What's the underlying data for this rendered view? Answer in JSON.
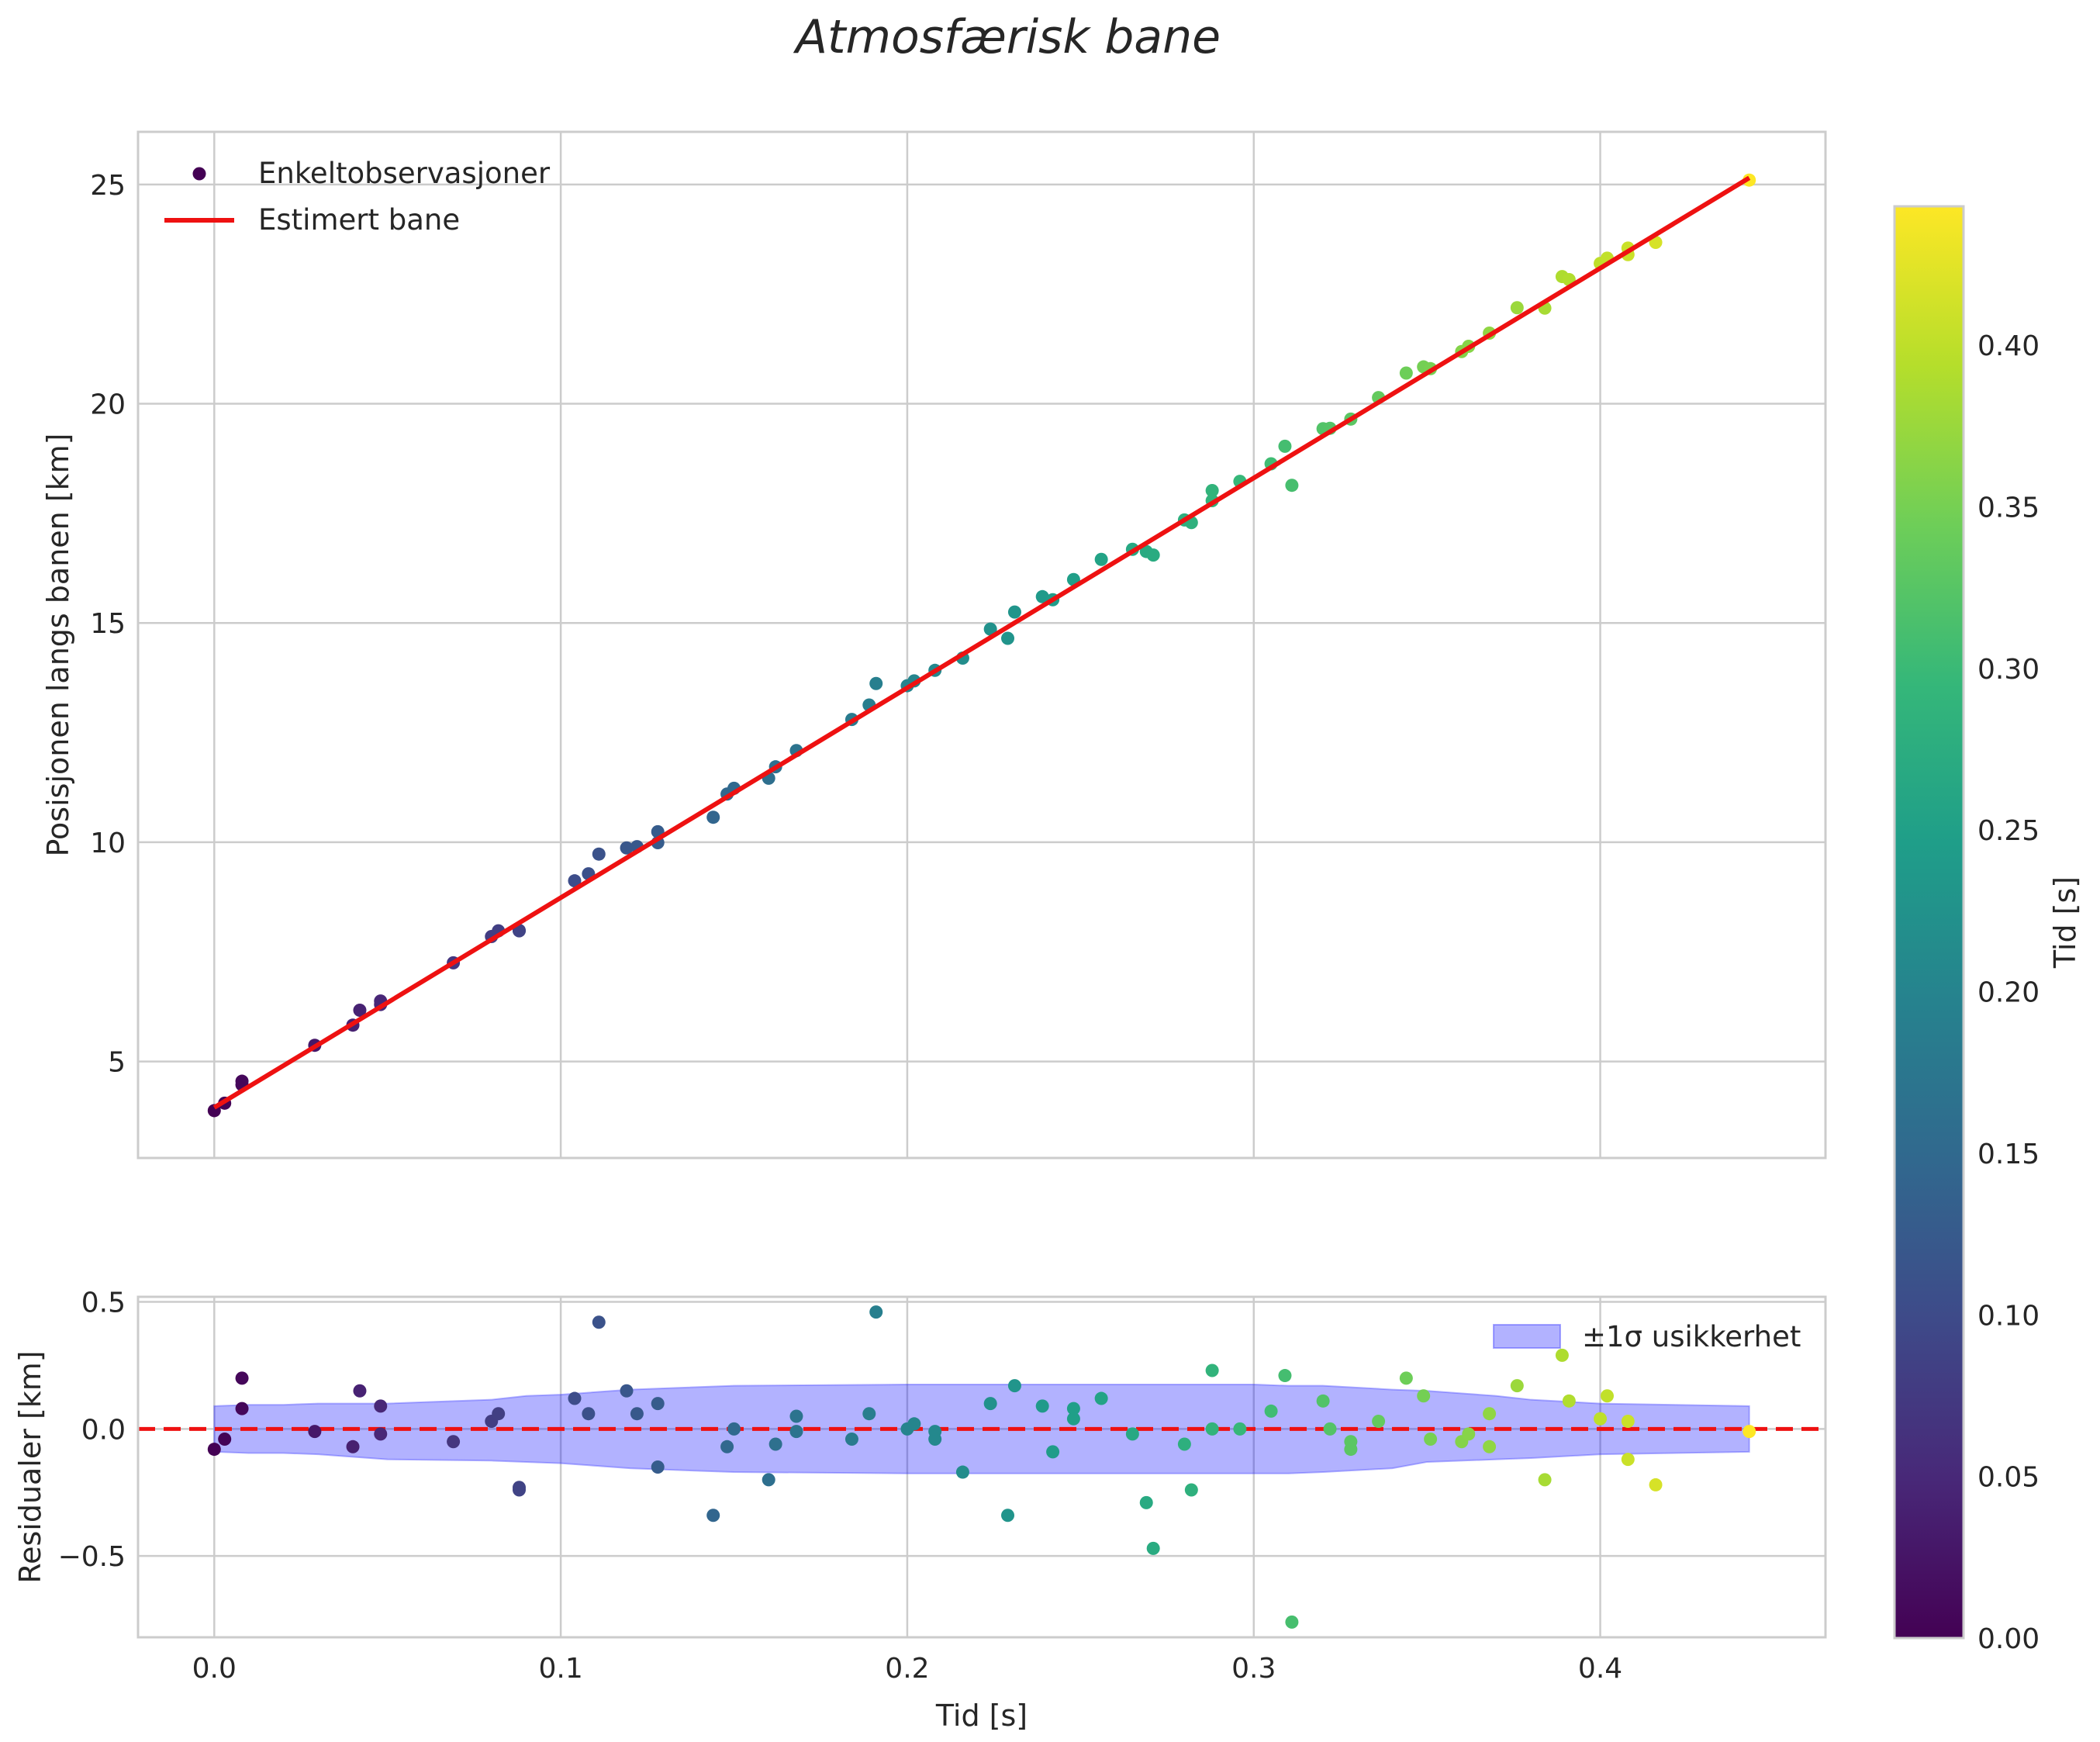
{
  "chart_data": [
    {
      "panel": "top",
      "type": "scatter",
      "title": "Atmosfærisk bane",
      "xlabel": "",
      "ylabel": "Posisjonen langs banen [km]",
      "xlim": [
        -0.022,
        0.465
      ],
      "ylim": [
        2.8,
        26.2
      ],
      "xticks": [
        0.0,
        0.1,
        0.2,
        0.3,
        0.4
      ],
      "yticks": [
        5,
        10,
        15,
        20,
        25
      ],
      "ytick_labels": [
        "5",
        "10",
        "15",
        "20",
        "25"
      ],
      "grid": true,
      "legend_position": "top-left",
      "legend": [
        "Enkeltobservasjoner",
        "Estimert bane"
      ],
      "fit_line": {
        "name": "Estimert bane",
        "color": "#ee1111",
        "x": [
          0.0,
          0.443
        ],
        "y": [
          3.95,
          25.15
        ]
      },
      "scatter_name": "Enkeltobservasjoner",
      "points": [
        [
          0.0,
          3.88
        ],
        [
          0.003,
          4.05
        ],
        [
          0.008,
          4.55
        ],
        [
          0.008,
          4.47
        ],
        [
          0.029,
          5.37
        ],
        [
          0.04,
          5.83
        ],
        [
          0.042,
          6.17
        ],
        [
          0.048,
          6.38
        ],
        [
          0.048,
          6.3
        ],
        [
          0.069,
          7.25
        ],
        [
          0.08,
          7.85
        ],
        [
          0.082,
          7.98
        ],
        [
          0.088,
          7.98
        ],
        [
          0.088,
          7.99
        ],
        [
          0.104,
          9.12
        ],
        [
          0.108,
          9.28
        ],
        [
          0.111,
          9.73
        ],
        [
          0.119,
          9.87
        ],
        [
          0.122,
          9.9
        ],
        [
          0.128,
          10.24
        ],
        [
          0.128,
          9.99
        ],
        [
          0.144,
          10.57
        ],
        [
          0.148,
          11.1
        ],
        [
          0.15,
          11.23
        ],
        [
          0.16,
          11.46
        ],
        [
          0.162,
          11.72
        ],
        [
          0.168,
          12.09
        ],
        [
          0.184,
          12.8
        ],
        [
          0.189,
          13.13
        ],
        [
          0.191,
          13.62
        ],
        [
          0.2,
          13.57
        ],
        [
          0.202,
          13.68
        ],
        [
          0.208,
          13.92
        ],
        [
          0.216,
          14.2
        ],
        [
          0.224,
          14.86
        ],
        [
          0.229,
          14.65
        ],
        [
          0.231,
          15.25
        ],
        [
          0.239,
          15.6
        ],
        [
          0.242,
          15.53
        ],
        [
          0.248,
          15.99
        ],
        [
          0.256,
          16.45
        ],
        [
          0.265,
          16.68
        ],
        [
          0.269,
          16.63
        ],
        [
          0.271,
          16.55
        ],
        [
          0.28,
          17.35
        ],
        [
          0.282,
          17.29
        ],
        [
          0.288,
          18.02
        ],
        [
          0.288,
          17.79
        ],
        [
          0.296,
          18.23
        ],
        [
          0.305,
          18.63
        ],
        [
          0.309,
          19.03
        ],
        [
          0.311,
          18.14
        ],
        [
          0.32,
          19.43
        ],
        [
          0.322,
          19.44
        ],
        [
          0.328,
          19.65
        ],
        [
          0.336,
          20.14
        ],
        [
          0.344,
          20.7
        ],
        [
          0.349,
          20.84
        ],
        [
          0.351,
          20.8
        ],
        [
          0.36,
          21.19
        ],
        [
          0.362,
          21.31
        ],
        [
          0.368,
          21.61
        ],
        [
          0.376,
          22.19
        ],
        [
          0.384,
          22.18
        ],
        [
          0.389,
          22.9
        ],
        [
          0.391,
          22.83
        ],
        [
          0.4,
          23.2
        ],
        [
          0.402,
          23.32
        ],
        [
          0.408,
          23.55
        ],
        [
          0.408,
          23.4
        ],
        [
          0.416,
          23.68
        ],
        [
          0.443,
          25.1
        ]
      ]
    },
    {
      "panel": "bottom",
      "type": "scatter",
      "title": "",
      "xlabel": "Tid [s]",
      "ylabel": "Residualer [km]",
      "xlim": [
        -0.022,
        0.465
      ],
      "ylim": [
        -0.82,
        0.52
      ],
      "xticks": [
        0.0,
        0.1,
        0.2,
        0.3,
        0.4
      ],
      "xtick_labels": [
        "0.0",
        "0.1",
        "0.2",
        "0.3",
        "0.4"
      ],
      "yticks": [
        -0.5,
        0.0,
        0.5
      ],
      "ytick_labels": [
        "−0.5",
        "0.0",
        "0.5"
      ],
      "grid": true,
      "legend_position": "top-right",
      "legend": [
        "±1σ usikkerhet"
      ],
      "zero_line": {
        "y": 0.0,
        "color": "#ee1111",
        "style": "dashed"
      },
      "band": {
        "name": "±1σ usikkerhet",
        "x": [
          0.0,
          0.01,
          0.02,
          0.03,
          0.05,
          0.08,
          0.09,
          0.1,
          0.12,
          0.15,
          0.2,
          0.25,
          0.3,
          0.31,
          0.32,
          0.34,
          0.35,
          0.37,
          0.38,
          0.4,
          0.443
        ],
        "upper": [
          0.09,
          0.095,
          0.095,
          0.1,
          0.1,
          0.115,
          0.13,
          0.135,
          0.155,
          0.17,
          0.175,
          0.175,
          0.175,
          0.17,
          0.17,
          0.155,
          0.15,
          0.13,
          0.115,
          0.1,
          0.09
        ],
        "lower": [
          -0.09,
          -0.095,
          -0.095,
          -0.1,
          -0.12,
          -0.125,
          -0.13,
          -0.135,
          -0.155,
          -0.17,
          -0.175,
          -0.175,
          -0.175,
          -0.175,
          -0.17,
          -0.155,
          -0.13,
          -0.12,
          -0.115,
          -0.1,
          -0.09
        ]
      },
      "points": [
        [
          0.0,
          -0.08
        ],
        [
          0.003,
          -0.04
        ],
        [
          0.008,
          0.2
        ],
        [
          0.008,
          0.08
        ],
        [
          0.029,
          -0.01
        ],
        [
          0.04,
          -0.07
        ],
        [
          0.042,
          0.15
        ],
        [
          0.048,
          0.09
        ],
        [
          0.048,
          -0.02
        ],
        [
          0.069,
          -0.05
        ],
        [
          0.08,
          0.03
        ],
        [
          0.082,
          0.06
        ],
        [
          0.088,
          -0.23
        ],
        [
          0.088,
          -0.24
        ],
        [
          0.104,
          0.12
        ],
        [
          0.108,
          0.06
        ],
        [
          0.111,
          0.42
        ],
        [
          0.119,
          0.15
        ],
        [
          0.122,
          0.06
        ],
        [
          0.128,
          0.1
        ],
        [
          0.128,
          -0.15
        ],
        [
          0.144,
          -0.34
        ],
        [
          0.148,
          -0.07
        ],
        [
          0.15,
          0.0
        ],
        [
          0.16,
          -0.2
        ],
        [
          0.162,
          -0.06
        ],
        [
          0.168,
          0.05
        ],
        [
          0.168,
          -0.01
        ],
        [
          0.184,
          -0.04
        ],
        [
          0.189,
          0.06
        ],
        [
          0.191,
          0.46
        ],
        [
          0.2,
          0.0
        ],
        [
          0.202,
          0.02
        ],
        [
          0.208,
          -0.01
        ],
        [
          0.208,
          -0.04
        ],
        [
          0.216,
          -0.17
        ],
        [
          0.224,
          0.1
        ],
        [
          0.229,
          -0.34
        ],
        [
          0.231,
          0.17
        ],
        [
          0.239,
          0.09
        ],
        [
          0.242,
          -0.09
        ],
        [
          0.248,
          0.08
        ],
        [
          0.248,
          0.04
        ],
        [
          0.256,
          0.12
        ],
        [
          0.265,
          -0.02
        ],
        [
          0.269,
          -0.29
        ],
        [
          0.271,
          -0.47
        ],
        [
          0.28,
          -0.06
        ],
        [
          0.282,
          -0.24
        ],
        [
          0.288,
          0.23
        ],
        [
          0.288,
          0.0
        ],
        [
          0.296,
          0.0
        ],
        [
          0.305,
          0.07
        ],
        [
          0.309,
          0.21
        ],
        [
          0.311,
          -0.76
        ],
        [
          0.32,
          0.11
        ],
        [
          0.322,
          0.0
        ],
        [
          0.328,
          -0.05
        ],
        [
          0.328,
          -0.08
        ],
        [
          0.336,
          0.03
        ],
        [
          0.344,
          0.2
        ],
        [
          0.349,
          0.13
        ],
        [
          0.351,
          -0.04
        ],
        [
          0.36,
          -0.05
        ],
        [
          0.362,
          -0.02
        ],
        [
          0.368,
          0.06
        ],
        [
          0.368,
          -0.07
        ],
        [
          0.376,
          0.17
        ],
        [
          0.384,
          -0.2
        ],
        [
          0.389,
          0.29
        ],
        [
          0.391,
          0.11
        ],
        [
          0.4,
          0.04
        ],
        [
          0.402,
          0.13
        ],
        [
          0.408,
          0.03
        ],
        [
          0.408,
          -0.12
        ],
        [
          0.416,
          -0.22
        ],
        [
          0.443,
          -0.01
        ]
      ]
    }
  ],
  "colorbar": {
    "label": "Tid [s]",
    "cmap": "viridis",
    "min": 0.0,
    "max": 0.443,
    "ticks": [
      0.0,
      0.05,
      0.1,
      0.15,
      0.2,
      0.25,
      0.3,
      0.35,
      0.4
    ],
    "tick_labels": [
      "0.00",
      "0.05",
      "0.10",
      "0.15",
      "0.20",
      "0.25",
      "0.30",
      "0.35",
      "0.40"
    ]
  },
  "colors": {
    "fit_line": "#ee1111",
    "band_fill": "#0000ff",
    "band_edge": "#3333ff",
    "grid": "#cccccc"
  }
}
